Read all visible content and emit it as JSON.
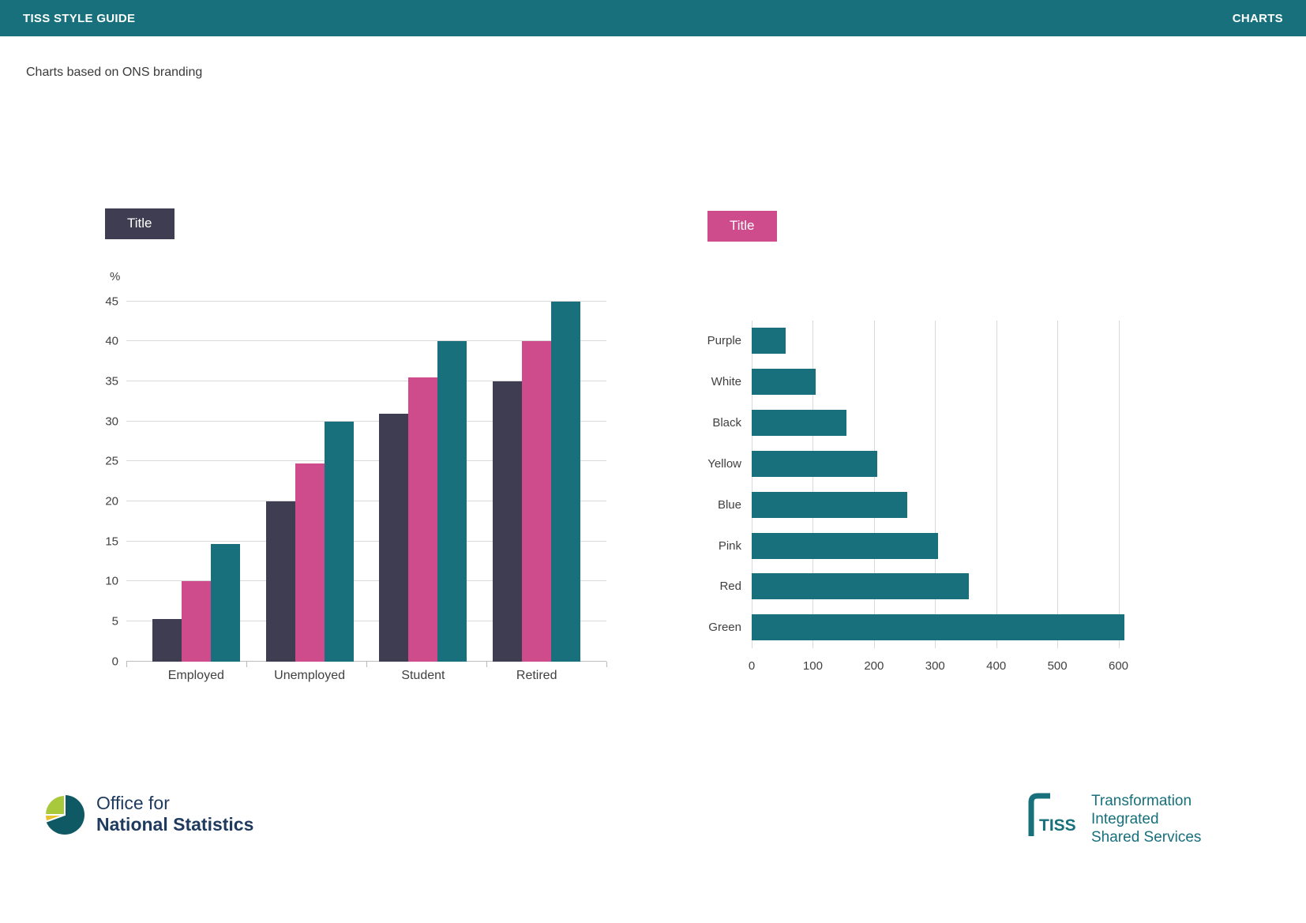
{
  "header": {
    "left_title": "TISS STYLE GUIDE",
    "right_title": "CHARTS"
  },
  "subtitle": "Charts based on ONS branding",
  "colors": {
    "teal": "#17707B",
    "pink": "#CE4B8C",
    "navy": "#3E3D51",
    "grid": "#D9D9D9",
    "ons_blue": "#1F3A5F"
  },
  "chart_data": [
    {
      "type": "bar",
      "orientation": "vertical",
      "title": "Title",
      "title_bg": "#3E3D51",
      "xlabel": "",
      "ylabel": "%",
      "ylim": [
        0,
        45
      ],
      "yticks": [
        0,
        5,
        10,
        15,
        20,
        25,
        30,
        35,
        40,
        45
      ],
      "categories": [
        "Employed",
        "Unemployed",
        "Student",
        "Retired"
      ],
      "series": [
        {
          "name": "navy",
          "color": "#3E3D51",
          "values": [
            5.3,
            20,
            31,
            35
          ]
        },
        {
          "name": "pink",
          "color": "#CE4B8C",
          "values": [
            10,
            24.7,
            35.5,
            40
          ]
        },
        {
          "name": "teal",
          "color": "#17707B",
          "values": [
            14.7,
            30,
            40,
            45
          ]
        }
      ],
      "grid": "horizontal",
      "legend": false
    },
    {
      "type": "bar",
      "orientation": "horizontal",
      "title": "Title",
      "title_bg": "#CE4B8C",
      "categories": [
        "Purple",
        "White",
        "Black",
        "Yellow",
        "Blue",
        "Pink",
        "Red",
        "Green"
      ],
      "values": [
        55,
        105,
        155,
        205,
        255,
        305,
        355,
        610
      ],
      "bar_color": "#17707B",
      "xlim": [
        0,
        620
      ],
      "xticks": [
        0,
        100,
        200,
        300,
        400,
        500,
        600
      ],
      "grid": "vertical",
      "legend": false
    }
  ],
  "footer": {
    "ons": {
      "line1": "Office for",
      "line2": "National Statistics"
    },
    "tiss": {
      "abbr": "TISS",
      "line1": "Transformation",
      "line2": "Integrated",
      "line3": "Shared Services"
    }
  }
}
